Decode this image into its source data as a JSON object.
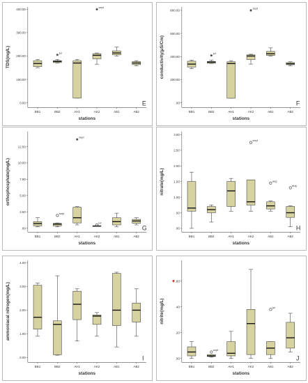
{
  "colors": {
    "box_fill": "#d6d3a0",
    "box_stroke": "#454545",
    "axis": "#555555",
    "outlier_star": "#3c3c3c"
  },
  "chart_data": [
    {
      "type": "box",
      "letter": "E",
      "xlabel": "stations",
      "ylabel": "TDS(mg/L)",
      "ylim": [
        -20,
        410
      ],
      "yticks": [
        "0.00",
        "100.00",
        "200.00",
        "300.00",
        "400.00"
      ],
      "ytick_values": [
        0,
        100,
        200,
        300,
        400
      ],
      "categories": [
        "BB1",
        "BB2",
        "AH1",
        "AK2",
        "AB1",
        "AB2"
      ],
      "boxes": [
        {
          "min": 150,
          "q1": 155,
          "median": 168,
          "q3": 180,
          "max": 185
        },
        {
          "min": 170,
          "q1": 172,
          "median": 177,
          "q3": 180,
          "max": 185
        },
        {
          "min": 20,
          "q1": 20,
          "median": 170,
          "q3": 180,
          "max": 185
        },
        {
          "min": 165,
          "q1": 188,
          "median": 203,
          "q3": 210,
          "max": 213
        },
        {
          "min": 200,
          "q1": 205,
          "median": 213,
          "q3": 222,
          "max": 238
        },
        {
          "min": 158,
          "q1": 163,
          "median": 170,
          "q3": 176,
          "max": 180
        }
      ],
      "outliers": [
        {
          "station": "BB2",
          "value": 205,
          "label": "jul",
          "marker": "star"
        },
        {
          "station": "AK2",
          "value": 400,
          "label": "sept",
          "marker": "star"
        }
      ]
    },
    {
      "type": "box",
      "letter": "F",
      "xlabel": "stations",
      "ylabel": "conductivity(μS/Cm)",
      "ylim": [
        -40,
        830
      ],
      "yticks": [
        ".00",
        "200.00",
        "400.00",
        "600.00",
        "800.00"
      ],
      "ytick_values": [
        0,
        200,
        400,
        600,
        800
      ],
      "categories": [
        "BB1",
        "BB2",
        "AH1",
        "AK2",
        "AB1",
        "AB2"
      ],
      "boxes": [
        {
          "min": 295,
          "q1": 310,
          "median": 335,
          "q3": 360,
          "max": 370
        },
        {
          "min": 340,
          "q1": 342,
          "median": 352,
          "q3": 358,
          "max": 370
        },
        {
          "min": 40,
          "q1": 40,
          "median": 340,
          "q3": 355,
          "max": 365
        },
        {
          "min": 335,
          "q1": 375,
          "median": 405,
          "q3": 415,
          "max": 420
        },
        {
          "min": 405,
          "q1": 410,
          "median": 425,
          "q3": 445,
          "max": 475
        },
        {
          "min": 320,
          "q1": 330,
          "median": 338,
          "q3": 348,
          "max": 355
        }
      ],
      "outliers": [
        {
          "station": "BB2",
          "value": 410,
          "label": "jul",
          "marker": "star"
        },
        {
          "station": "AK2",
          "value": 800,
          "label": "sept",
          "marker": "star"
        }
      ]
    },
    {
      "type": "box",
      "letter": "G",
      "xlabel": "stations",
      "ylabel": "orthophosphate(mg/L)",
      "ylim": [
        -0.6,
        14.8
      ],
      "yticks": [
        ".00",
        "2.50",
        "5.00",
        "7.50",
        "10.00",
        "12.50"
      ],
      "ytick_values": [
        0,
        2.5,
        5,
        7.5,
        10,
        12.5
      ],
      "categories": [
        "BB1",
        "BB2",
        "AH1",
        "AK2",
        "AB1",
        "AB2"
      ],
      "boxes": [
        {
          "min": 0.2,
          "q1": 0.35,
          "median": 0.7,
          "q3": 1.0,
          "max": 1.6
        },
        {
          "min": 0.2,
          "q1": 0.35,
          "median": 0.6,
          "q3": 0.75,
          "max": 0.8
        },
        {
          "min": 0.5,
          "q1": 0.8,
          "median": 1.6,
          "q3": 3.2,
          "max": 3.3
        },
        {
          "min": 0.28,
          "q1": 0.31,
          "median": 0.33,
          "q3": 0.36,
          "max": 0.38
        },
        {
          "min": 0.2,
          "q1": 0.5,
          "median": 1.0,
          "q3": 1.6,
          "max": 2.3
        },
        {
          "min": 0.5,
          "q1": 0.75,
          "median": 1.1,
          "q3": 1.35,
          "max": 1.6
        }
      ],
      "outliers": [
        {
          "station": "BB2",
          "value": 1.95,
          "label": "sept",
          "marker": "circle"
        },
        {
          "station": "AH1",
          "value": 13.6,
          "label": "sept",
          "marker": "star"
        },
        {
          "station": "AK2",
          "value": 0.5,
          "label": "jul",
          "marker": "circle"
        }
      ]
    },
    {
      "type": "box",
      "letter": "H",
      "xlabel": "stations",
      "ylabel": "nitrate(mg/L)",
      "ylim": [
        -0.12,
        3.1
      ],
      "yticks": [
        ".00",
        ".50",
        "1.00",
        "1.50",
        "2.00",
        "2.50",
        "3.00"
      ],
      "ytick_values": [
        0,
        0.5,
        1,
        1.5,
        2,
        2.5,
        3
      ],
      "categories": [
        "BB1",
        "BB2",
        "AH1",
        "AK2",
        "AB1",
        "AB2"
      ],
      "boxes": [
        {
          "min": 0.0,
          "q1": 0.55,
          "median": 0.65,
          "q3": 1.5,
          "max": 1.8
        },
        {
          "min": 0.2,
          "q1": 0.5,
          "median": 0.6,
          "q3": 0.7,
          "max": 0.75
        },
        {
          "min": 0.55,
          "q1": 0.7,
          "median": 1.2,
          "q3": 1.5,
          "max": 1.6
        },
        {
          "min": 0.55,
          "q1": 0.75,
          "median": 0.85,
          "q3": 1.55,
          "max": 1.55
        },
        {
          "min": 0.55,
          "q1": 0.62,
          "median": 0.72,
          "q3": 0.85,
          "max": 0.88
        },
        {
          "min": 0.05,
          "q1": 0.35,
          "median": 0.5,
          "q3": 0.7,
          "max": 0.72
        }
      ],
      "outliers": [
        {
          "station": "AK2",
          "value": 2.75,
          "label": "sept",
          "marker": "circle"
        },
        {
          "station": "AB1",
          "value": 1.45,
          "label": "aug",
          "marker": "circle"
        },
        {
          "station": "AB2",
          "value": 1.3,
          "label": "aug",
          "marker": "circle"
        }
      ]
    },
    {
      "type": "box",
      "letter": "I",
      "xlabel": "stations",
      "ylabel": "ammoniacal nitrogen(mg/L)",
      "ylim": [
        -0.2,
        4.1
      ],
      "yticks": [
        "0.00",
        "1.00",
        "2.00",
        "3.00",
        "4.00"
      ],
      "ytick_values": [
        0,
        1,
        2,
        3,
        4
      ],
      "categories": [
        "BB1",
        "BB2",
        "AH1",
        "AK2",
        "AB1",
        "AB2"
      ],
      "boxes": [
        {
          "min": 0.9,
          "q1": 1.2,
          "median": 1.7,
          "q3": 3.05,
          "max": 3.15
        },
        {
          "min": 0.1,
          "q1": 0.12,
          "median": 1.4,
          "q3": 1.55,
          "max": 3.45
        },
        {
          "min": 0.7,
          "q1": 1.6,
          "median": 2.25,
          "q3": 2.8,
          "max": 2.9
        },
        {
          "min": 0.9,
          "q1": 1.4,
          "median": 1.75,
          "q3": 1.8,
          "max": 1.9
        },
        {
          "min": 0.45,
          "q1": 1.35,
          "median": 2.0,
          "q3": 3.55,
          "max": 3.6
        },
        {
          "min": 0.9,
          "q1": 1.5,
          "median": 2.0,
          "q3": 2.3,
          "max": 2.9
        }
      ],
      "outliers": []
    },
    {
      "type": "box",
      "letter": "J",
      "xlabel": "stations",
      "ylabel": "nitrite(mg/L)",
      "ylim": [
        -0.03,
        0.76
      ],
      "yticks": [
        ".00",
        ".20",
        ".40",
        ".60"
      ],
      "ytick_values": [
        0,
        0.2,
        0.4,
        0.6
      ],
      "categories": [
        "BB1",
        "BB2",
        "AH1",
        "AK2",
        "AB1",
        "AB2"
      ],
      "boxes": [
        {
          "min": 0.0,
          "q1": 0.02,
          "median": 0.05,
          "q3": 0.09,
          "max": 0.13
        },
        {
          "min": 0.01,
          "q1": 0.015,
          "median": 0.02,
          "q3": 0.03,
          "max": 0.03
        },
        {
          "min": 0.0,
          "q1": 0.02,
          "median": 0.04,
          "q3": 0.13,
          "max": 0.21
        },
        {
          "min": 0.0,
          "q1": 0.03,
          "median": 0.27,
          "q3": 0.38,
          "max": 0.69
        },
        {
          "min": 0.0,
          "q1": 0.03,
          "median": 0.08,
          "q3": 0.13,
          "max": 0.13
        },
        {
          "min": 0.05,
          "q1": 0.08,
          "median": 0.16,
          "q3": 0.28,
          "max": 0.35
        }
      ],
      "outliers": [
        {
          "station": "BB2",
          "value": 0.05,
          "label": "sept",
          "marker": "circle"
        },
        {
          "station": "AB1",
          "value": 0.38,
          "label": "jul",
          "marker": "circle"
        }
      ],
      "axis_marks": [
        {
          "value": 0.6,
          "marker": "star",
          "color": "#c0392b"
        }
      ]
    }
  ]
}
